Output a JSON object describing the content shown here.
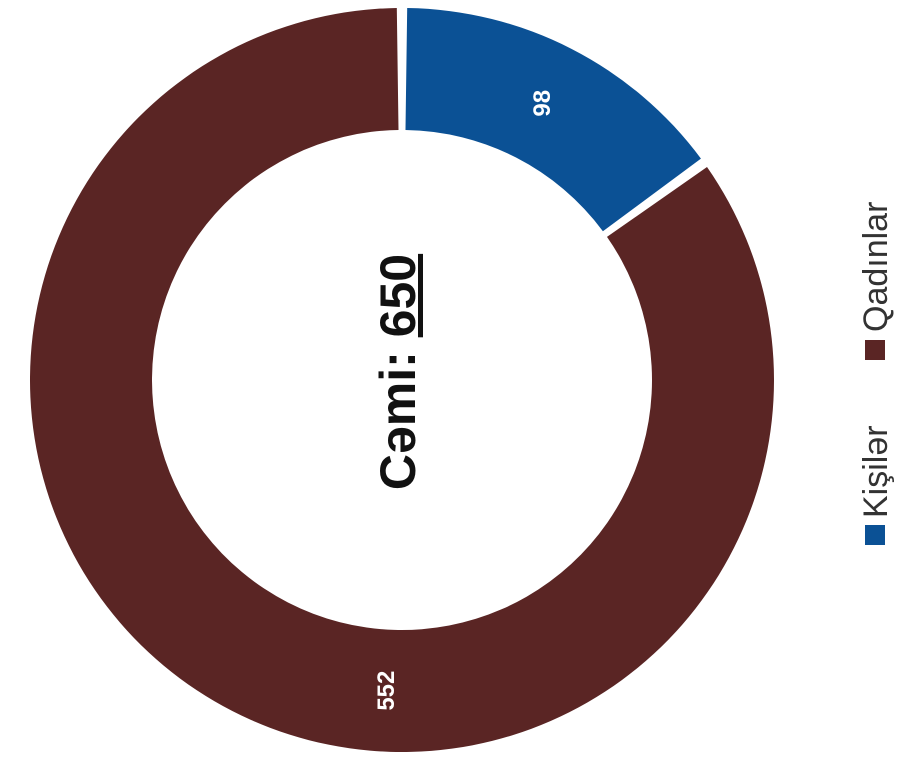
{
  "chart_data": {
    "type": "pie",
    "variant": "donut",
    "categories": [
      "Kişilər",
      "Qadınlar"
    ],
    "values": [
      98,
      552
    ],
    "colors": [
      "#0b5195",
      "#5a2524"
    ],
    "data_labels": [
      "98",
      "552"
    ],
    "legend": {
      "items": [
        {
          "label": "Kişilər",
          "color": "#0b5195"
        },
        {
          "label": "Qadınlar",
          "color": "#5a2524"
        }
      ],
      "placement": "right"
    }
  },
  "total": {
    "prefix": "Cəmi: ",
    "value": "650"
  }
}
